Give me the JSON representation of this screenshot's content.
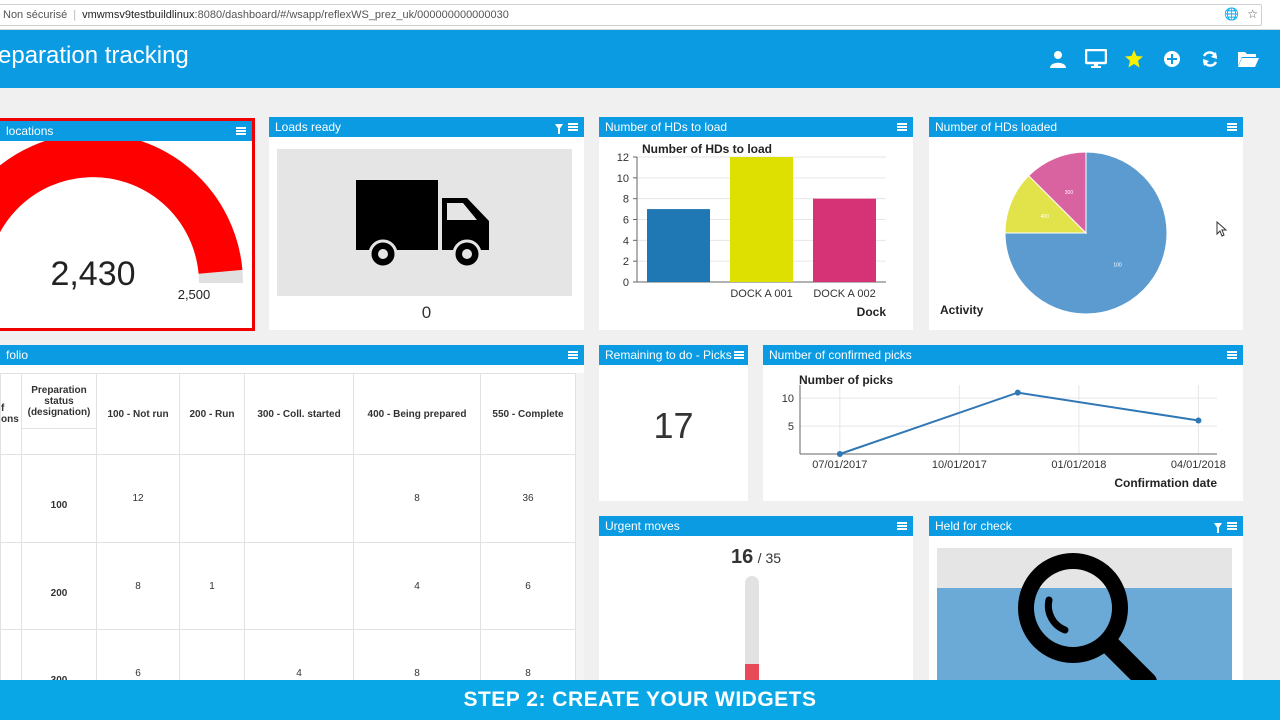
{
  "browser": {
    "security": "Non sécurisé",
    "url_host": "vmwmsv9testbuildlinux",
    "url_rest": ":8080/dashboard/#/wsapp/reflexWS_prez_uk/000000000000030"
  },
  "app": {
    "title": "eparation tracking",
    "icons": [
      "user-icon",
      "monitor-icon",
      "star-icon",
      "add-icon",
      "refresh-icon",
      "folder-open-icon"
    ]
  },
  "widgets": {
    "locations": {
      "title": "locations",
      "value": "2,430",
      "max": "2,500",
      "fraction": 0.972
    },
    "loads_ready": {
      "title": "Loads ready",
      "value": "0"
    },
    "hds_to_load": {
      "title": "Number of HDs to load"
    },
    "hds_loaded": {
      "title": "Number of HDs loaded"
    },
    "portfolio": {
      "title": "folio",
      "col0_header": "f\nons",
      "col1_header": "Preparation status (designation)",
      "status_headers": [
        "100 - Not run",
        "200 - Run",
        "300 - Coll. started",
        "400 - Being prepared",
        "550 - Complete"
      ],
      "rows": [
        {
          "label": "100",
          "cells": [
            "12",
            "",
            "",
            "8",
            "36"
          ]
        },
        {
          "label": "200",
          "cells": [
            "8",
            "1",
            "",
            "4",
            "6"
          ]
        },
        {
          "label": "300",
          "cells": [
            "6",
            "",
            "4",
            "8",
            "8"
          ]
        }
      ]
    },
    "remaining": {
      "title": "Remaining to do - Picks",
      "value": "17"
    },
    "confirmed_picks": {
      "title": "Number of confirmed picks"
    },
    "urgent_moves": {
      "title": "Urgent moves",
      "value": "16",
      "total": "/ 35",
      "fraction": 0.457
    },
    "held_for_check": {
      "title": "Held for check"
    }
  },
  "chart_data": [
    {
      "type": "bar",
      "title": "Number of HDs to load",
      "xlabel": "Dock",
      "ylabel": "",
      "categories": [
        "",
        "DOCK A 001",
        "DOCK A 002"
      ],
      "values": [
        7,
        12,
        8
      ],
      "colors": [
        "#1f77b4",
        "#dde000",
        "#d63377"
      ],
      "ylim": [
        0,
        12
      ],
      "yticks": [
        0,
        2,
        4,
        6,
        8,
        10,
        12
      ]
    },
    {
      "type": "pie",
      "title": "",
      "xlabel": "Activity",
      "slices": [
        {
          "label": "100",
          "value": 100,
          "color": "#5b9bd0"
        },
        {
          "label": "300",
          "value": 300,
          "color": "#d863a0"
        },
        {
          "label": "400",
          "value": 400,
          "color": "#e2e24a"
        }
      ]
    },
    {
      "type": "line",
      "title": "Number of picks",
      "xlabel": "Confirmation date",
      "x": [
        "07/01/2017",
        "10/01/2017",
        "01/01/2018",
        "04/01/2018"
      ],
      "points": [
        {
          "x": "07/01/2017",
          "y": 0
        },
        {
          "x": "11/15/2017",
          "y": 11
        },
        {
          "x": "04/01/2018",
          "y": 6
        }
      ],
      "ylim": [
        0,
        12
      ],
      "yticks": [
        5,
        10
      ],
      "color": "#2f78b5"
    }
  ],
  "banner": {
    "text": "STEP 2: CREATE YOUR WIDGETS"
  }
}
